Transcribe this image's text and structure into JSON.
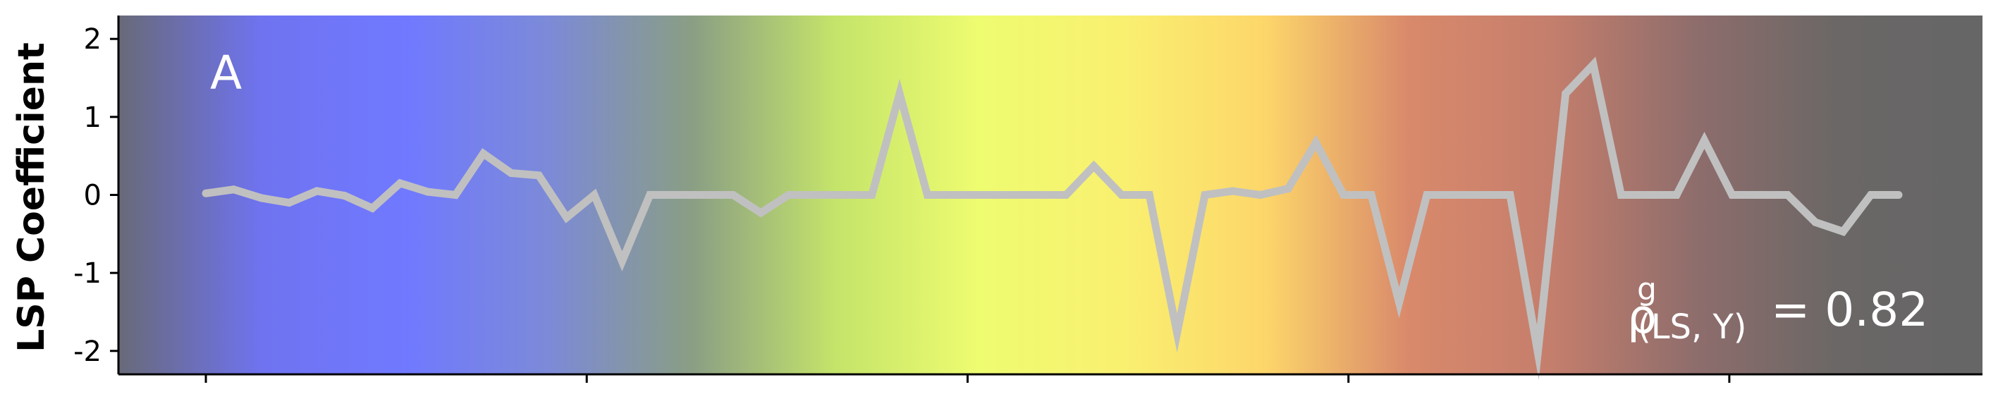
{
  "chart_data": {
    "type": "line",
    "ylabel": "LSP Coefficient",
    "ylim": [
      -2.3,
      2.3
    ],
    "yticks": [
      2,
      1,
      0,
      -1,
      -2
    ],
    "ytick_labels": [
      "2",
      "1",
      "0",
      "-1",
      "-2"
    ],
    "panel_label": "A",
    "annotation": {
      "symbol": "ρ",
      "superscript": "g",
      "subscript": "(LS, Y)",
      "value_text": "= 0.82"
    },
    "x_ticks_count": 5,
    "series": [
      {
        "color": "#c0c0c0",
        "x": [
          0,
          1,
          2,
          3,
          4,
          5,
          6,
          7,
          8,
          9,
          10,
          11,
          12,
          13,
          14,
          15,
          16,
          17,
          18,
          19,
          20,
          21,
          22,
          23,
          24,
          25,
          26,
          27,
          28,
          29,
          30,
          31,
          32,
          33,
          34,
          35,
          36,
          37,
          38,
          39,
          40,
          41,
          42,
          43,
          44,
          45,
          46,
          47,
          48,
          49,
          50,
          51,
          52,
          53,
          54,
          55,
          56,
          57,
          58,
          59,
          60,
          61
        ],
        "values": [
          0.02,
          0.07,
          -0.04,
          -0.1,
          0.05,
          -0.01,
          -0.17,
          0.15,
          0.04,
          0.0,
          0.53,
          0.28,
          0.25,
          -0.29,
          0.0,
          -0.85,
          0.0,
          0.0,
          0.0,
          0.0,
          -0.23,
          0.0,
          0.0,
          0.0,
          0.0,
          1.3,
          0.0,
          0.0,
          0.0,
          0.0,
          0.0,
          0.0,
          0.37,
          0.0,
          0.0,
          -1.77,
          0.0,
          0.05,
          0.0,
          0.08,
          0.67,
          0.0,
          0.0,
          -1.38,
          0.0,
          0.0,
          0.0,
          0.0,
          -2.02,
          1.3,
          1.67,
          0.0,
          0.0,
          0.0,
          0.7,
          0.0,
          0.0,
          0.0,
          -0.35,
          -0.47,
          0.0,
          0.0
        ]
      }
    ],
    "background_gradient": [
      "#686a78",
      "#6f73f0",
      "#7079ff",
      "#7c8ad8",
      "#8a9e84",
      "#c4e46a",
      "#eefc70",
      "#f9f070",
      "#fdd66a",
      "#d9896b",
      "#c47e6c",
      "#8e6d6c",
      "#6a6766",
      "#666666"
    ]
  }
}
